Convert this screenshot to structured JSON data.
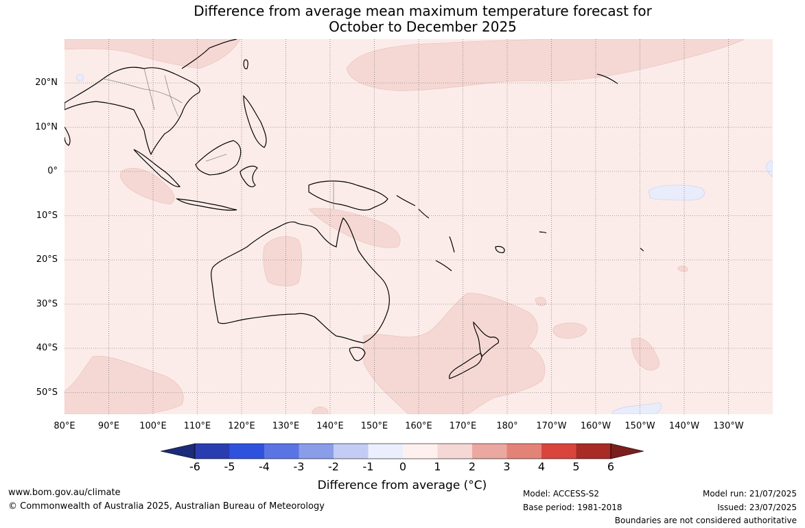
{
  "title_line1": "Difference from average mean maximum temperature forecast for",
  "title_line2": "October to December 2025",
  "lat_labels": [
    "20°N",
    "10°N",
    "0°",
    "10°S",
    "20°S",
    "30°S",
    "40°S",
    "50°S"
  ],
  "lon_labels": [
    "80°E",
    "90°E",
    "100°E",
    "110°E",
    "120°E",
    "130°E",
    "140°E",
    "150°E",
    "160°E",
    "170°E",
    "180°",
    "170°W",
    "160°W",
    "150°W",
    "140°W",
    "130°W"
  ],
  "colorbar": {
    "ticks": [
      "-6",
      "-5",
      "-4",
      "-3",
      "-2",
      "-1",
      "0",
      "1",
      "2",
      "3",
      "4",
      "5",
      "6"
    ],
    "colors": [
      "#1c2a7a",
      "#2a3db0",
      "#2f52de",
      "#5b74e4",
      "#8a9de9",
      "#c3ccf4",
      "#ebeefc",
      "#fdf0ee",
      "#f5d8d5",
      "#eaa8a0",
      "#e38378",
      "#d9453c",
      "#a82b25",
      "#7a1f1c"
    ],
    "label": "Difference from average (°C)",
    "range": [
      -6,
      6
    ]
  },
  "footer": {
    "website": "www.bom.gov.au/climate",
    "copyright": "© Commonwealth of Australia 2025, Australian Bureau of Meteorology",
    "model": "Model: ACCESS-S2",
    "base_period": "Base period: 1981-2018",
    "model_run": "Model run: 21/07/2025",
    "issued": "Issued: 23/07/2025",
    "disclaimer": "Boundaries are not considered authoritative"
  }
}
